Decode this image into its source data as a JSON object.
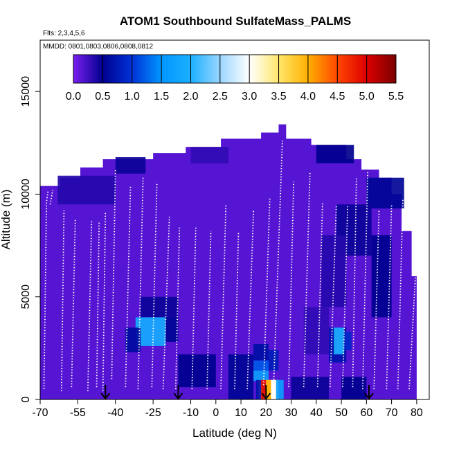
{
  "chart_data": {
    "type": "heatmap",
    "title": "ATOM1 Southbound SulfateMass_PALMS",
    "subtitle_flights": "Flts: 2,3,4,5,6",
    "subtitle_dates": "MMDD: 0801,0803,0806,0808,0812",
    "xlabel": "Latitude (deg N)",
    "ylabel": "Altitude (m)",
    "xlim": [
      -70,
      85
    ],
    "ylim": [
      0,
      17500
    ],
    "x_ticks": [
      -70,
      -55,
      -40,
      -25,
      -10,
      0,
      10,
      20,
      30,
      40,
      50,
      60,
      70,
      80
    ],
    "x_tick_labels": [
      "-70",
      "-55",
      "-40",
      "-25",
      "-10",
      "0",
      "10",
      "20",
      "30",
      "40",
      "50",
      "60",
      "70",
      "80"
    ],
    "y_ticks": [
      0,
      5000,
      10000,
      15000
    ],
    "y_tick_labels": [
      "0",
      "5000",
      "10000",
      "15000"
    ],
    "colorbar": {
      "min": 0.0,
      "max": 5.5,
      "ticks": [
        0.0,
        0.5,
        1.0,
        1.5,
        2.0,
        2.5,
        3.0,
        3.5,
        4.0,
        4.5,
        5.0,
        5.5
      ],
      "tick_labels": [
        "0.0",
        "0.5",
        "1.0",
        "1.5",
        "2.0",
        "2.5",
        "3.0",
        "3.5",
        "4.0",
        "4.5",
        "5.0",
        "5.5"
      ],
      "stops": [
        {
          "v": 0.0,
          "c": "#7a1ef0"
        },
        {
          "v": 0.5,
          "c": "#00008e"
        },
        {
          "v": 1.0,
          "c": "#0032d8"
        },
        {
          "v": 1.5,
          "c": "#0096ff"
        },
        {
          "v": 2.0,
          "c": "#1cb0ff"
        },
        {
          "v": 2.5,
          "c": "#9ad6ff"
        },
        {
          "v": 3.0,
          "c": "#ffffff"
        },
        {
          "v": 3.5,
          "c": "#ffe66b"
        },
        {
          "v": 4.0,
          "c": "#ffb000"
        },
        {
          "v": 4.5,
          "c": "#ff4600"
        },
        {
          "v": 5.0,
          "c": "#dc0000"
        },
        {
          "v": 5.5,
          "c": "#7a0000"
        }
      ]
    },
    "background_value": 0.15,
    "domain_top": [
      {
        "x": -70,
        "y": 10400
      },
      {
        "x": -62,
        "y": 10400
      },
      {
        "x": -62,
        "y": 10800
      },
      {
        "x": -54,
        "y": 10800
      },
      {
        "x": -54,
        "y": 11300
      },
      {
        "x": -45,
        "y": 11300
      },
      {
        "x": -45,
        "y": 11700
      },
      {
        "x": -25,
        "y": 11700
      },
      {
        "x": -25,
        "y": 12000
      },
      {
        "x": -12,
        "y": 12000
      },
      {
        "x": -12,
        "y": 12300
      },
      {
        "x": 2,
        "y": 12300
      },
      {
        "x": 2,
        "y": 12700
      },
      {
        "x": 18,
        "y": 12700
      },
      {
        "x": 18,
        "y": 13000
      },
      {
        "x": 25,
        "y": 13000
      },
      {
        "x": 25,
        "y": 13400
      },
      {
        "x": 28,
        "y": 13400
      },
      {
        "x": 28,
        "y": 12700
      },
      {
        "x": 38,
        "y": 12700
      },
      {
        "x": 38,
        "y": 12400
      },
      {
        "x": 52,
        "y": 12400
      },
      {
        "x": 52,
        "y": 11700
      },
      {
        "x": 58,
        "y": 11700
      },
      {
        "x": 58,
        "y": 11200
      },
      {
        "x": 65,
        "y": 11200
      },
      {
        "x": 65,
        "y": 10800
      },
      {
        "x": 70,
        "y": 10800
      },
      {
        "x": 70,
        "y": 10000
      },
      {
        "x": 74,
        "y": 10000
      },
      {
        "x": 74,
        "y": 8200
      },
      {
        "x": 78,
        "y": 8200
      },
      {
        "x": 78,
        "y": 6000
      },
      {
        "x": 80,
        "y": 6000
      },
      {
        "x": 80,
        "y": 0
      },
      {
        "x": -70,
        "y": 0
      }
    ],
    "patches": [
      {
        "x0": -63,
        "x1": -40,
        "y0": 9500,
        "y1": 10900,
        "v": 0.35
      },
      {
        "x0": -40,
        "x1": -28,
        "y0": 11000,
        "y1": 11800,
        "v": 0.45
      },
      {
        "x0": -10,
        "x1": 5,
        "y0": 11500,
        "y1": 12300,
        "v": 0.3
      },
      {
        "x0": 40,
        "x1": 55,
        "y0": 11500,
        "y1": 12400,
        "v": 0.5
      },
      {
        "x0": 60,
        "x1": 75,
        "y0": 9300,
        "y1": 10800,
        "v": 0.55
      },
      {
        "x0": 48,
        "x1": 62,
        "y0": 7000,
        "y1": 9500,
        "v": 0.45
      },
      {
        "x0": 62,
        "x1": 70,
        "y0": 4000,
        "y1": 8000,
        "v": 0.5
      },
      {
        "x0": 42,
        "x1": 52,
        "y0": 4500,
        "y1": 8000,
        "v": 0.35
      },
      {
        "x0": -30,
        "x1": -15,
        "y0": 4000,
        "y1": 5000,
        "v": 0.45
      },
      {
        "x0": -32,
        "x1": -20,
        "y0": 2600,
        "y1": 4000,
        "v": 1.9
      },
      {
        "x0": -36,
        "x1": -30,
        "y0": 2300,
        "y1": 3500,
        "v": 0.6
      },
      {
        "x0": -20,
        "x1": -15,
        "y0": 2800,
        "y1": 4000,
        "v": 0.55
      },
      {
        "x0": -15,
        "x1": 0,
        "y0": 600,
        "y1": 2200,
        "v": 0.5
      },
      {
        "x0": 5,
        "x1": 15,
        "y0": 0,
        "y1": 2200,
        "v": 0.55
      },
      {
        "x0": 15,
        "x1": 21,
        "y0": 1900,
        "y1": 2700,
        "v": 0.65
      },
      {
        "x0": 15,
        "x1": 21,
        "y0": 1400,
        "y1": 1900,
        "v": 1.2
      },
      {
        "x0": 15,
        "x1": 21,
        "y0": 900,
        "y1": 1400,
        "v": 1.7
      },
      {
        "x0": 21,
        "x1": 25,
        "y0": 1400,
        "y1": 2400,
        "v": 0.8
      },
      {
        "x0": 17,
        "x1": 25,
        "y0": 0,
        "y1": 950,
        "v": 3.3
      },
      {
        "x0": 18,
        "x1": 20,
        "y0": 0,
        "y1": 950,
        "v": 5.0
      },
      {
        "x0": 20,
        "x1": 22,
        "y0": 0,
        "y1": 950,
        "v": 4.0
      },
      {
        "x0": 22,
        "x1": 24,
        "y0": 0,
        "y1": 950,
        "v": 3.0
      },
      {
        "x0": 16,
        "x1": 18,
        "y0": 0,
        "y1": 950,
        "v": 0.7
      },
      {
        "x0": 24,
        "x1": 27,
        "y0": 0,
        "y1": 950,
        "v": 1.7
      },
      {
        "x0": 30,
        "x1": 45,
        "y0": 0,
        "y1": 1100,
        "v": 0.45
      },
      {
        "x0": 45,
        "x1": 52,
        "y0": 1800,
        "y1": 3500,
        "v": 0.7
      },
      {
        "x0": 47,
        "x1": 51,
        "y0": 2200,
        "y1": 3500,
        "v": 2.0
      },
      {
        "x0": 51,
        "x1": 54,
        "y0": 2400,
        "y1": 3300,
        "v": 0.9
      },
      {
        "x0": 50,
        "x1": 60,
        "y0": 0,
        "y1": 1100,
        "v": 0.5
      },
      {
        "x0": 35,
        "x1": 45,
        "y0": 2200,
        "y1": 4500,
        "v": 0.3
      }
    ],
    "flight_tracks": [
      {
        "x": [
          -68.5,
          -68.0,
          -67.5,
          -66.8
        ],
        "y": [
          500,
          4800,
          9600,
          10200
        ]
      },
      {
        "x": [
          -66.0,
          -65.0
        ],
        "y": [
          9500,
          10200
        ]
      },
      {
        "x": [
          -61.5,
          -60.5
        ],
        "y": [
          400,
          9200
        ]
      },
      {
        "x": [
          -57.5,
          -56.0
        ],
        "y": [
          600,
          8800
        ]
      },
      {
        "x": [
          -51.0,
          -49.5
        ],
        "y": [
          400,
          8700
        ]
      },
      {
        "x": [
          -47.5,
          -46.5
        ],
        "y": [
          600,
          8700
        ]
      },
      {
        "x": [
          -45.0,
          -44.0
        ],
        "y": [
          400,
          9100
        ]
      },
      {
        "x": [
          -41.5,
          -40.0
        ],
        "y": [
          1000,
          11200
        ]
      },
      {
        "x": [
          -36.0,
          -34.0
        ],
        "y": [
          600,
          10400
        ]
      },
      {
        "x": [
          -31.0,
          -29.0
        ],
        "y": [
          500,
          10800
        ]
      },
      {
        "x": [
          -25.5,
          -23.5
        ],
        "y": [
          600,
          10500
        ]
      },
      {
        "x": [
          -21.0,
          -18.5
        ],
        "y": [
          500,
          8900
        ]
      },
      {
        "x": [
          -16.0,
          -14.5
        ],
        "y": [
          500,
          8400
        ]
      },
      {
        "x": [
          -9.5,
          -8.0
        ],
        "y": [
          500,
          8400
        ]
      },
      {
        "x": [
          -3.5,
          -2.0
        ],
        "y": [
          500,
          8200
        ]
      },
      {
        "x": [
          2.0,
          4.0
        ],
        "y": [
          500,
          9500
        ]
      },
      {
        "x": [
          7.5,
          9.0
        ],
        "y": [
          500,
          8100
        ]
      },
      {
        "x": [
          12.5,
          15.0
        ],
        "y": [
          500,
          9200
        ]
      },
      {
        "x": [
          19.0,
          21.5
        ],
        "y": [
          700,
          9800
        ]
      },
      {
        "x": [
          23.0,
          26.5
        ],
        "y": [
          700,
          12600
        ]
      },
      {
        "x": [
          29.0,
          31.0
        ],
        "y": [
          600,
          10600
        ]
      },
      {
        "x": [
          35.0,
          37.5
        ],
        "y": [
          600,
          11100
        ]
      },
      {
        "x": [
          40.5,
          42.5
        ],
        "y": [
          600,
          9600
        ]
      },
      {
        "x": [
          45.5,
          48.0
        ],
        "y": [
          600,
          9500
        ]
      },
      {
        "x": [
          50.5,
          52.5
        ],
        "y": [
          600,
          9400
        ]
      },
      {
        "x": [
          54.5,
          56.0
        ],
        "y": [
          600,
          10800
        ]
      },
      {
        "x": [
          58.5,
          60.5
        ],
        "y": [
          500,
          11100
        ]
      },
      {
        "x": [
          63.0,
          65.0
        ],
        "y": [
          500,
          9200
        ]
      },
      {
        "x": [
          68.0,
          70.0
        ],
        "y": [
          500,
          9500
        ]
      },
      {
        "x": [
          72.5,
          74.5
        ],
        "y": [
          500,
          9800
        ]
      },
      {
        "x": [
          77.0,
          79.5
        ],
        "y": [
          500,
          6000
        ]
      }
    ],
    "arrows_x": [
      -44,
      -15,
      20,
      61
    ]
  }
}
